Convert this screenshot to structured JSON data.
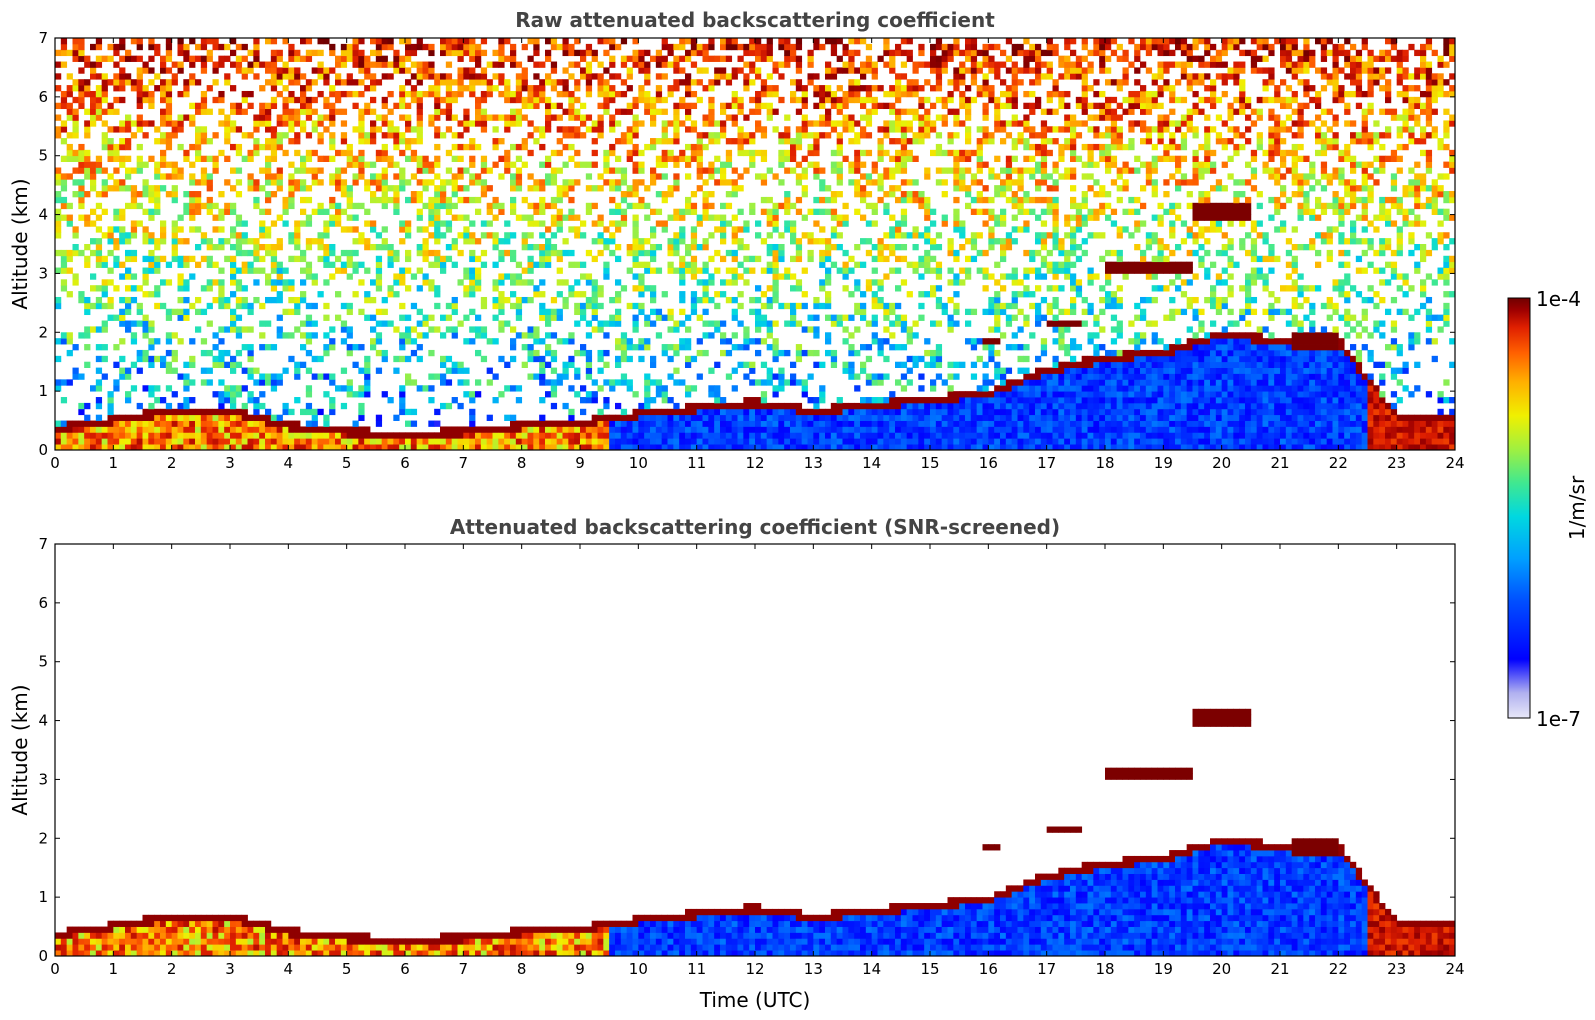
{
  "colors": {
    "title": "#444444",
    "frame": "#000000",
    "background": "#ffffff",
    "colormap": [
      "#e8e8f8",
      "#b0b0f0",
      "#0000ff",
      "#0050ff",
      "#00a0ff",
      "#00d8e0",
      "#40e890",
      "#a0f040",
      "#f0f000",
      "#ffb000",
      "#ff6000",
      "#e02000",
      "#a00000",
      "#700000"
    ]
  },
  "chart_data": [
    {
      "type": "heatmap",
      "title": "Raw attenuated backscattering coefficient",
      "xlabel": "",
      "ylabel": "Altitude (km)",
      "xlim": [
        0,
        24
      ],
      "ylim": [
        0,
        7
      ],
      "xticks": [
        "0",
        "1",
        "2",
        "3",
        "4",
        "5",
        "6",
        "7",
        "8",
        "9",
        "10",
        "11",
        "12",
        "13",
        "14",
        "15",
        "16",
        "17",
        "18",
        "19",
        "20",
        "21",
        "22",
        "23",
        "24"
      ],
      "yticks": [
        "0",
        "1",
        "2",
        "3",
        "4",
        "5",
        "6",
        "7"
      ],
      "boundary_layer_top_km": [
        [
          0,
          0.3
        ],
        [
          1,
          0.45
        ],
        [
          2,
          0.6
        ],
        [
          3,
          0.6
        ],
        [
          4,
          0.35
        ],
        [
          5,
          0.25
        ],
        [
          6,
          0.2
        ],
        [
          7,
          0.25
        ],
        [
          8,
          0.35
        ],
        [
          9,
          0.4
        ],
        [
          10,
          0.55
        ],
        [
          11,
          0.65
        ],
        [
          12,
          0.75
        ],
        [
          13,
          0.6
        ],
        [
          14,
          0.7
        ],
        [
          15,
          0.8
        ],
        [
          16,
          0.9
        ],
        [
          17,
          1.3
        ],
        [
          18,
          1.5
        ],
        [
          19,
          1.6
        ],
        [
          20,
          1.9
        ],
        [
          21,
          1.8
        ],
        [
          22,
          1.8
        ],
        [
          23,
          0.5
        ]
      ],
      "cloud_layers": [
        {
          "x": [
            19.5,
            20.5
          ],
          "y": [
            3.9,
            4.15
          ]
        },
        {
          "x": [
            18.0,
            19.5
          ],
          "y": [
            3.0,
            3.2
          ]
        },
        {
          "x": [
            17.0,
            17.6
          ],
          "y": [
            2.1,
            2.2
          ]
        },
        {
          "x": [
            15.9,
            16.2
          ],
          "y": [
            1.8,
            1.95
          ]
        },
        {
          "x": [
            21.2,
            22.0
          ],
          "y": [
            1.7,
            2.05
          ]
        }
      ]
    },
    {
      "type": "heatmap",
      "title": "Attenuated backscattering coefficient (SNR-screened)",
      "xlabel": "Time (UTC)",
      "ylabel": "Altitude (km)",
      "xlim": [
        0,
        24
      ],
      "ylim": [
        0,
        7
      ],
      "xticks": [
        "0",
        "1",
        "2",
        "3",
        "4",
        "5",
        "6",
        "7",
        "8",
        "9",
        "10",
        "11",
        "12",
        "13",
        "14",
        "15",
        "16",
        "17",
        "18",
        "19",
        "20",
        "21",
        "22",
        "23",
        "24"
      ],
      "yticks": [
        "0",
        "1",
        "2",
        "3",
        "4",
        "5",
        "6",
        "7"
      ]
    }
  ],
  "colorbar": {
    "max_label": "1e-4",
    "min_label": "1e-7",
    "unit_label": "1/m/sr",
    "range": [
      1e-07,
      0.0001
    ],
    "scale": "log"
  }
}
